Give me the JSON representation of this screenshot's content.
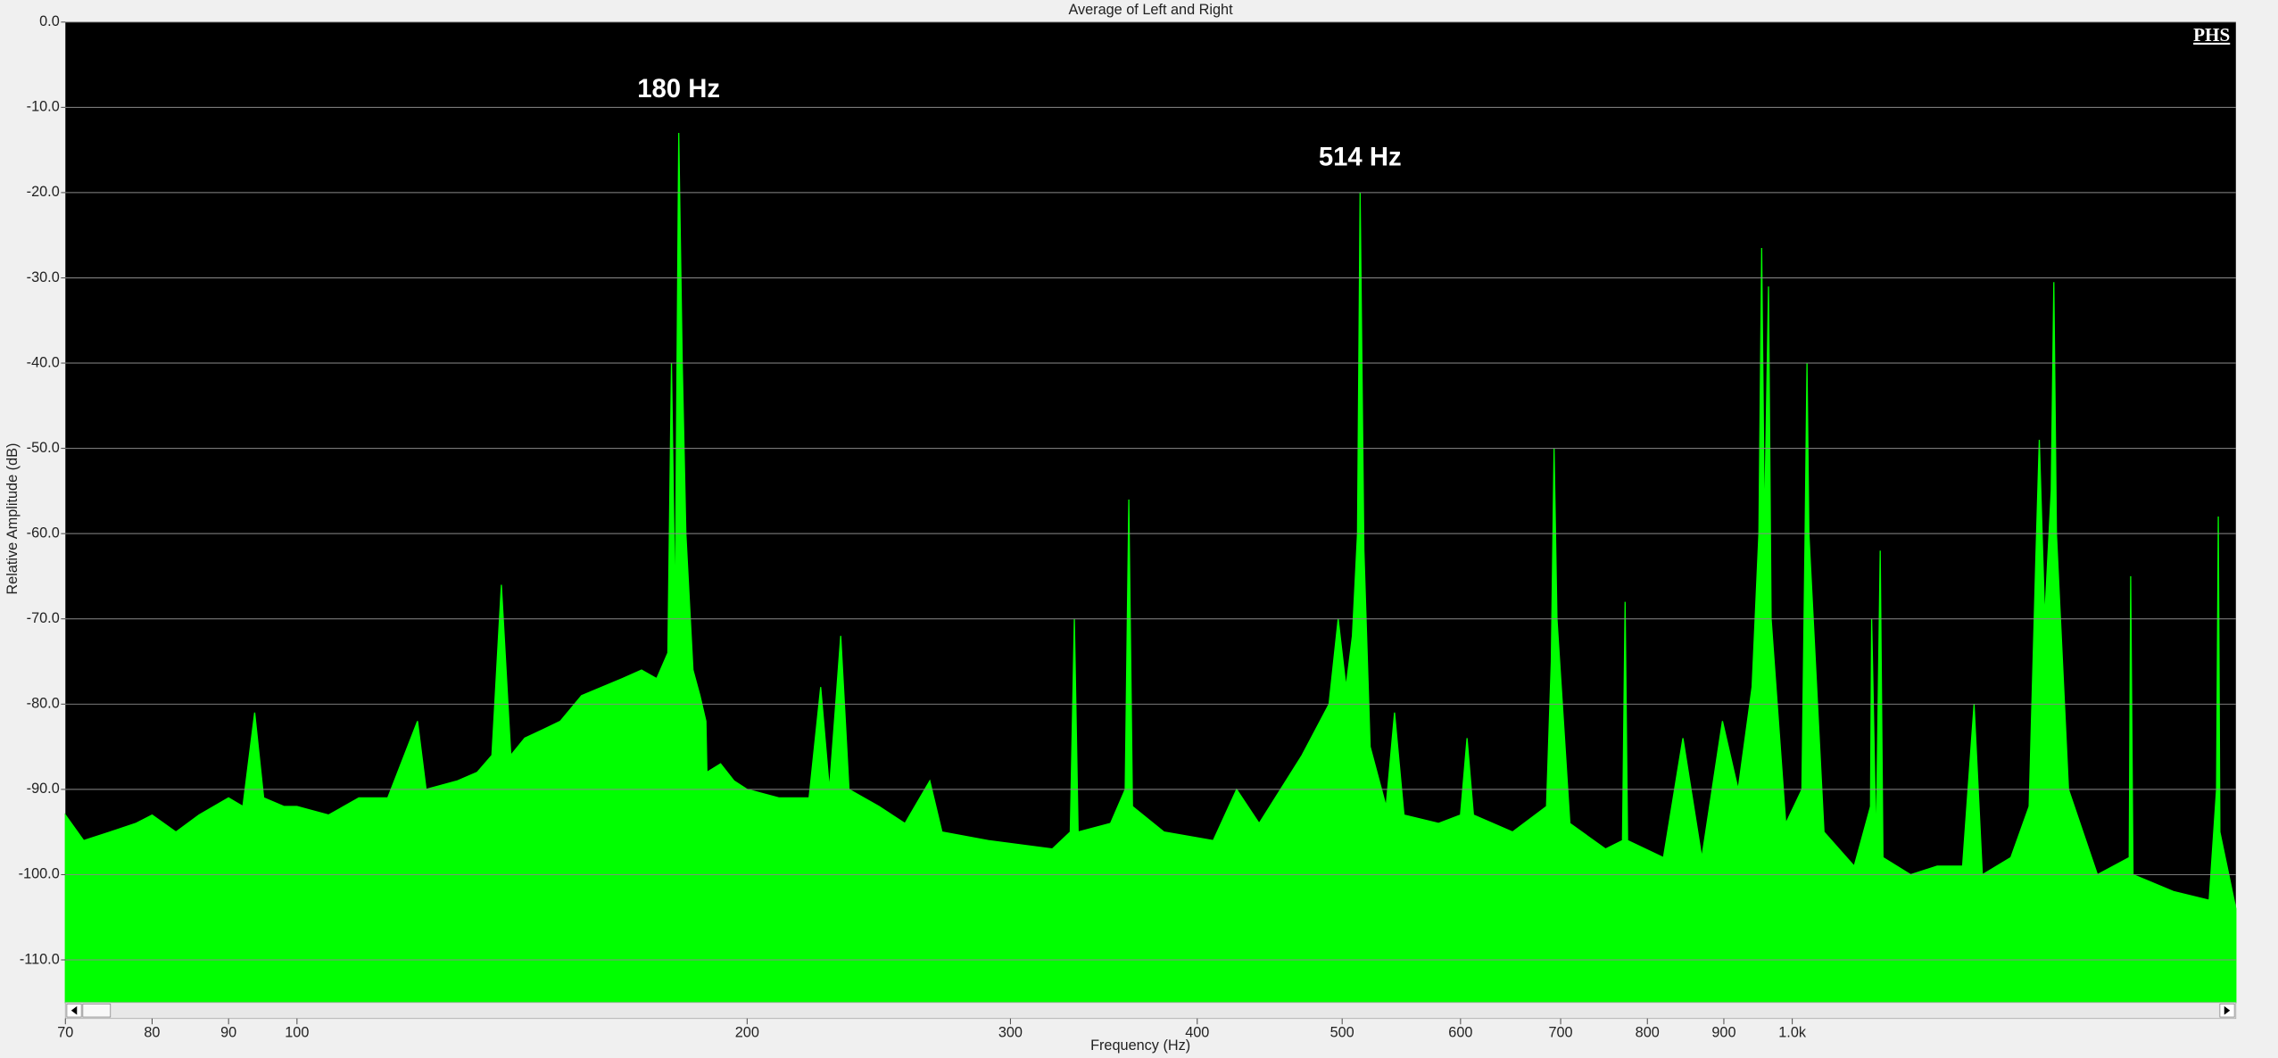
{
  "chart_data": {
    "type": "area",
    "title": "Average of Left and Right",
    "x_label": "Frequency (Hz)",
    "y_label": "Relative Amplitude (dB)",
    "logo": "PHS",
    "xscale": "log",
    "grid": true,
    "color": "#00ff00",
    "xlim": [
      70,
      1980
    ],
    "ylim": [
      -115,
      0
    ],
    "xticks": [
      70,
      80,
      90,
      100,
      200,
      300,
      400,
      500,
      600,
      700,
      800,
      900,
      {
        "value": 1000,
        "label": "1.0k"
      }
    ],
    "yticks": [
      {
        "value": 0,
        "label": "0.0"
      },
      {
        "value": -10,
        "label": "-10.0"
      },
      {
        "value": -20,
        "label": "-20.0"
      },
      {
        "value": -30,
        "label": "-30.0"
      },
      {
        "value": -40,
        "label": "-40.0"
      },
      {
        "value": -50,
        "label": "-50.0"
      },
      {
        "value": -60,
        "label": "-60.0"
      },
      {
        "value": -70,
        "label": "-70.0"
      },
      {
        "value": -80,
        "label": "-80.0"
      },
      {
        "value": -90,
        "label": "-90.0"
      },
      {
        "value": -100,
        "label": "-100.0"
      },
      {
        "value": -110,
        "label": "-110.0"
      }
    ],
    "annotations": [
      {
        "text": "180 Hz",
        "x": 180,
        "y": -8
      },
      {
        "text": "514 Hz",
        "x": 514,
        "y": -16
      }
    ],
    "x": [
      70,
      72,
      75,
      78,
      80,
      83,
      86,
      90,
      92,
      93.7,
      95,
      98,
      100,
      105,
      110,
      115,
      120.4,
      122,
      128,
      132,
      135,
      137,
      139,
      142,
      146,
      150,
      155,
      160,
      165,
      170,
      174,
      177,
      178,
      179,
      180,
      181,
      182,
      184,
      186,
      187.7,
      188,
      192,
      196,
      200,
      210,
      220,
      224,
      227,
      231,
      234,
      245,
      255,
      265,
      270,
      290,
      320,
      329,
      331,
      333,
      350,
      358,
      360,
      362,
      380,
      410,
      425,
      440,
      470,
      490,
      497,
      503,
      508,
      512,
      514,
      517,
      522,
      535,
      542,
      550,
      580,
      600,
      606,
      612,
      650,
      685,
      690,
      693,
      696,
      710,
      750,
      770,
      773,
      776,
      820,
      845,
      870,
      898,
      920,
      940,
      950,
      954,
      958,
      964,
      968,
      990,
      1015,
      1020,
      1023,
      1026,
      1050,
      1100,
      1128,
      1130,
      1138,
      1145,
      1150,
      1200,
      1250,
      1300,
      1323,
      1340,
      1400,
      1440,
      1455,
      1463,
      1475,
      1490,
      1496,
      1502,
      1530,
      1600,
      1680,
      1684,
      1690,
      1800,
      1900,
      1922,
      1927,
      1932,
      1980
    ],
    "values": [
      -93,
      -96,
      -95,
      -94,
      -93,
      -95,
      -93,
      -91,
      -92,
      -81,
      -91,
      -92,
      -92,
      -93,
      -91,
      -91,
      -82,
      -90,
      -89,
      -88,
      -86,
      -66,
      -86,
      -84,
      -83,
      -82,
      -79,
      -78,
      -77,
      -76,
      -77,
      -74,
      -40,
      -70,
      -13,
      -40,
      -60,
      -76,
      -79,
      -82,
      -88,
      -87,
      -89,
      -90,
      -91,
      -91,
      -78,
      -90,
      -72,
      -90,
      -92,
      -94,
      -89,
      -95,
      -96,
      -97,
      -95,
      -70,
      -95,
      -94,
      -90,
      -56,
      -92,
      -95,
      -96,
      -90,
      -94,
      -86,
      -80,
      -70,
      -78,
      -72,
      -60,
      -20,
      -62,
      -85,
      -92,
      -81,
      -93,
      -94,
      -93,
      -84,
      -93,
      -95,
      -92,
      -75,
      -50,
      -70,
      -94,
      -97,
      -96,
      -68,
      -96,
      -98,
      -84,
      -98,
      -82,
      -90,
      -78,
      -60,
      -26.5,
      -60,
      -31,
      -70,
      -94,
      -90,
      -60,
      -40,
      -60,
      -95,
      -99,
      -92,
      -70,
      -97,
      -62,
      -98,
      -100,
      -99,
      -99,
      -80,
      -100,
      -98,
      -92,
      -63,
      -49,
      -70,
      -55,
      -30.5,
      -60,
      -90,
      -100,
      -98,
      -65,
      -100,
      -102,
      -103,
      -90,
      -58,
      -95,
      -104
    ]
  }
}
